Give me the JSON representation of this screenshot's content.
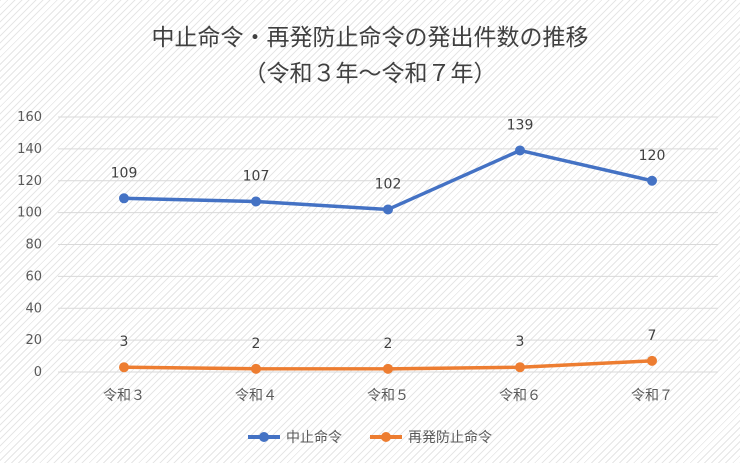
{
  "title_lines": [
    "中止命令・再発防止命令の発出件数の推移",
    "（令和３年～令和７年）"
  ],
  "chart_data": {
    "type": "line",
    "categories": [
      "令和３",
      "令和４",
      "令和５",
      "令和６",
      "令和７"
    ],
    "series": [
      {
        "name": "中止命令",
        "values": [
          109,
          107,
          102,
          139,
          120
        ],
        "color": "#4472c4"
      },
      {
        "name": "再発防止命令",
        "values": [
          3,
          2,
          2,
          3,
          7
        ],
        "color": "#ed7d31"
      }
    ],
    "ylim": [
      0,
      160
    ],
    "yticks": [
      0,
      20,
      40,
      60,
      80,
      100,
      120,
      140,
      160
    ],
    "grid": true,
    "legend_position": "bottom"
  }
}
